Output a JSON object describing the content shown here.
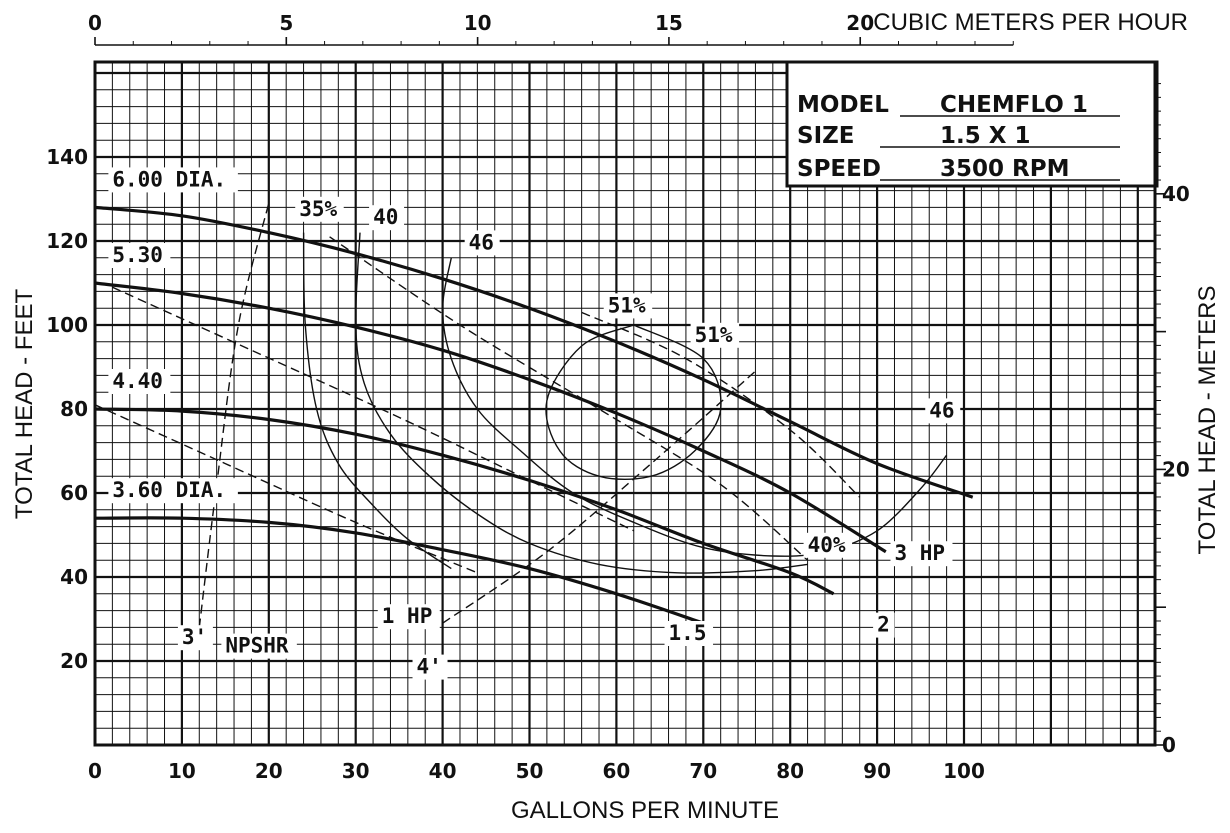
{
  "chart_data": {
    "type": "line",
    "title": "",
    "xlabel": "GALLONS PER MINUTE",
    "ylabel": "TOTAL HEAD - FEET",
    "x2label": "CUBIC METERS PER HOUR",
    "y2label": "TOTAL HEAD - METERS",
    "xlim": [
      0,
      120
    ],
    "ylim": [
      0,
      165
    ],
    "x_ticks": [
      0,
      10,
      20,
      30,
      40,
      50,
      60,
      70,
      80,
      90,
      100
    ],
    "x_tick_labels": [
      "0",
      "10",
      "20",
      "30",
      "40",
      "50",
      "60",
      "70",
      "80",
      "90",
      "100"
    ],
    "y_ticks": [
      20,
      40,
      60,
      80,
      100,
      120,
      140
    ],
    "y_tick_labels": [
      "20",
      "40",
      "60",
      "80",
      "100",
      "120",
      "140"
    ],
    "x2_ticks": [
      0,
      5,
      10,
      15,
      20
    ],
    "x2_tick_labels": [
      "0",
      "5",
      "10",
      "15",
      "20"
    ],
    "y2_ticks": [
      0,
      20,
      40
    ],
    "y2_tick_labels": [
      "0",
      "20",
      "40"
    ],
    "grid": true,
    "info_box": {
      "model_label": "MODEL",
      "model_value": "CHEMFLO 1",
      "size_label": "SIZE",
      "size_value": "1.5 X 1",
      "speed_label": "SPEED",
      "speed_value": "3500 RPM"
    },
    "series": [
      {
        "name": "6.00 DIA.",
        "style": "head",
        "x": [
          0,
          10,
          20,
          30,
          40,
          50,
          60,
          70,
          80,
          90,
          101
        ],
        "y": [
          128,
          126,
          122,
          117,
          111,
          104,
          96,
          87,
          77,
          67,
          59
        ]
      },
      {
        "name": "5.30",
        "style": "head",
        "x": [
          0,
          10,
          20,
          30,
          40,
          50,
          60,
          70,
          80,
          91
        ],
        "y": [
          110,
          107.5,
          104,
          99.5,
          94,
          87,
          79,
          70,
          60,
          46
        ]
      },
      {
        "name": "4.40",
        "style": "head",
        "x": [
          0,
          10,
          20,
          30,
          40,
          50,
          60,
          70,
          80,
          85
        ],
        "y": [
          80,
          79.5,
          77.5,
          74,
          69,
          63,
          56,
          48,
          41,
          36
        ]
      },
      {
        "name": "3.60 DIA.",
        "style": "head",
        "x": [
          0,
          10,
          20,
          30,
          40,
          50,
          60,
          70
        ],
        "y": [
          54,
          54,
          53,
          50.5,
          46.5,
          42,
          36,
          29
        ]
      },
      {
        "name": "35%",
        "style": "efficiency",
        "x": [
          24,
          24.2,
          25.5,
          28,
          32,
          36,
          41
        ],
        "y": [
          122,
          100,
          80,
          67,
          57,
          49,
          42
        ]
      },
      {
        "name": "40",
        "style": "efficiency",
        "x": [
          30.5,
          30,
          31,
          34,
          38.5,
          44,
          50,
          58,
          67,
          76,
          82
        ],
        "y": [
          122,
          100,
          86,
          74,
          64,
          55,
          48,
          43,
          41,
          41.5,
          43
        ]
      },
      {
        "name": "46",
        "style": "efficiency",
        "x": [
          41,
          40,
          41,
          44,
          49,
          55,
          62,
          70,
          78,
          84,
          90,
          95,
          98
        ],
        "y": [
          116,
          104,
          92,
          80,
          70,
          60,
          53,
          47,
          45,
          46,
          51,
          61,
          69
        ]
      },
      {
        "name": "51%",
        "style": "efficiency",
        "x": [
          62,
          56,
          52,
          53.5,
          58,
          64,
          69,
          72,
          70,
          62
        ],
        "y": [
          100,
          95,
          82,
          70,
          64,
          64,
          70,
          80,
          92,
          100
        ]
      },
      {
        "name": "1 HP",
        "style": "power",
        "x": [
          0,
          15,
          30,
          44
        ],
        "y": [
          81,
          67,
          53,
          41
        ]
      },
      {
        "name": "1.5",
        "style": "power",
        "x": [
          2,
          18,
          35,
          50,
          62
        ],
        "y": [
          109,
          94,
          78,
          63,
          51
        ]
      },
      {
        "name": "2",
        "style": "power",
        "x": [
          27,
          42,
          58,
          72,
          82
        ],
        "y": [
          121,
          100,
          80,
          62,
          44
        ]
      },
      {
        "name": "3 HP",
        "style": "power",
        "x": [
          56,
          68,
          80,
          88
        ],
        "y": [
          103,
          92,
          75,
          59
        ]
      },
      {
        "name": "3'",
        "style": "npshr",
        "x": [
          12,
          14,
          16.5,
          20
        ],
        "y": [
          28,
          62,
          100,
          129
        ]
      },
      {
        "name": "4'",
        "style": "npshr",
        "x": [
          40,
          52,
          64,
          76
        ],
        "y": [
          29,
          46,
          67,
          89
        ]
      }
    ],
    "annotations": [
      {
        "text": "6.00 DIA.",
        "x": 2,
        "y": 133
      },
      {
        "text": "35%",
        "x": 23.5,
        "y": 126
      },
      {
        "text": "40",
        "x": 32,
        "y": 124
      },
      {
        "text": "46",
        "x": 43,
        "y": 118
      },
      {
        "text": "5.30",
        "x": 2,
        "y": 115
      },
      {
        "text": "51%",
        "x": 59,
        "y": 103
      },
      {
        "text": "51%",
        "x": 69,
        "y": 96
      },
      {
        "text": "4.40",
        "x": 2,
        "y": 85
      },
      {
        "text": "46",
        "x": 96,
        "y": 78
      },
      {
        "text": "3.60 DIA.",
        "x": 2,
        "y": 59
      },
      {
        "text": "40%",
        "x": 82,
        "y": 46
      },
      {
        "text": "3 HP",
        "x": 92,
        "y": 44
      },
      {
        "text": "1 HP",
        "x": 33,
        "y": 29
      },
      {
        "text": "2",
        "x": 90,
        "y": 27
      },
      {
        "text": "1.5",
        "x": 66,
        "y": 25
      },
      {
        "text": "3'",
        "x": 10,
        "y": 24
      },
      {
        "text": "NPSHR",
        "x": 15,
        "y": 22
      },
      {
        "text": "4'",
        "x": 37,
        "y": 17
      }
    ]
  }
}
